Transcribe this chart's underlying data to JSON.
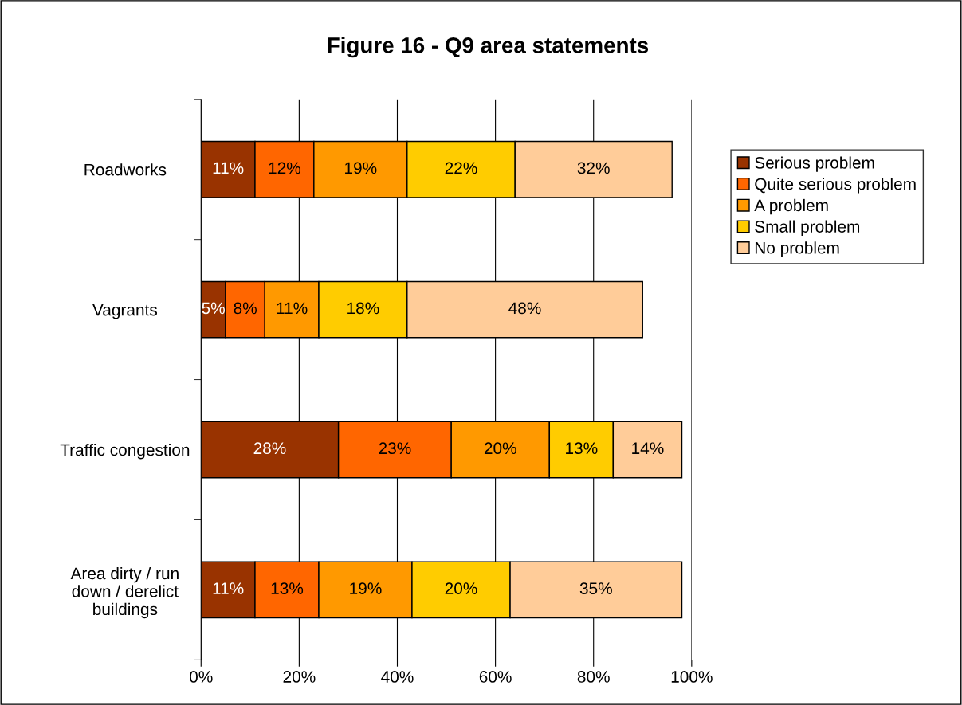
{
  "chart_data": {
    "type": "bar",
    "orientation": "horizontal",
    "stacked": true,
    "title": "Figure 16 - Q9 area statements",
    "categories": [
      "Roadworks",
      "Vagrants",
      "Traffic congestion",
      "Area dirty / run\ndown / derelict\nbuildings"
    ],
    "series": [
      {
        "name": "Serious problem",
        "color": "#993300",
        "values": [
          11,
          5,
          28,
          11
        ],
        "value_labels": [
          "11%",
          "5%",
          "28%",
          "11%"
        ]
      },
      {
        "name": "Quite serious problem",
        "color": "#ff6600",
        "values": [
          12,
          8,
          23,
          13
        ],
        "value_labels": [
          "12%",
          "8%",
          "23%",
          "13%"
        ]
      },
      {
        "name": "A problem",
        "color": "#ff9900",
        "values": [
          19,
          11,
          20,
          19
        ],
        "value_labels": [
          "19%",
          "11%",
          "20%",
          "19%"
        ]
      },
      {
        "name": "Small problem",
        "color": "#ffcc00",
        "values": [
          22,
          18,
          13,
          20
        ],
        "value_labels": [
          "22%",
          "18%",
          "13%",
          "20%"
        ]
      },
      {
        "name": "No problem",
        "color": "#ffcc99",
        "values": [
          32,
          48,
          14,
          35
        ],
        "value_labels": [
          "32%",
          "48%",
          "14%",
          "35%"
        ]
      }
    ],
    "xlim": [
      0,
      100
    ],
    "xticks": [
      {
        "value": 0,
        "label": "0%"
      },
      {
        "value": 20,
        "label": "20%"
      },
      {
        "value": 40,
        "label": "40%"
      },
      {
        "value": 60,
        "label": "60%"
      },
      {
        "value": 80,
        "label": "80%"
      },
      {
        "value": 100,
        "label": "100%"
      }
    ],
    "grid": "x",
    "legend": "right"
  }
}
